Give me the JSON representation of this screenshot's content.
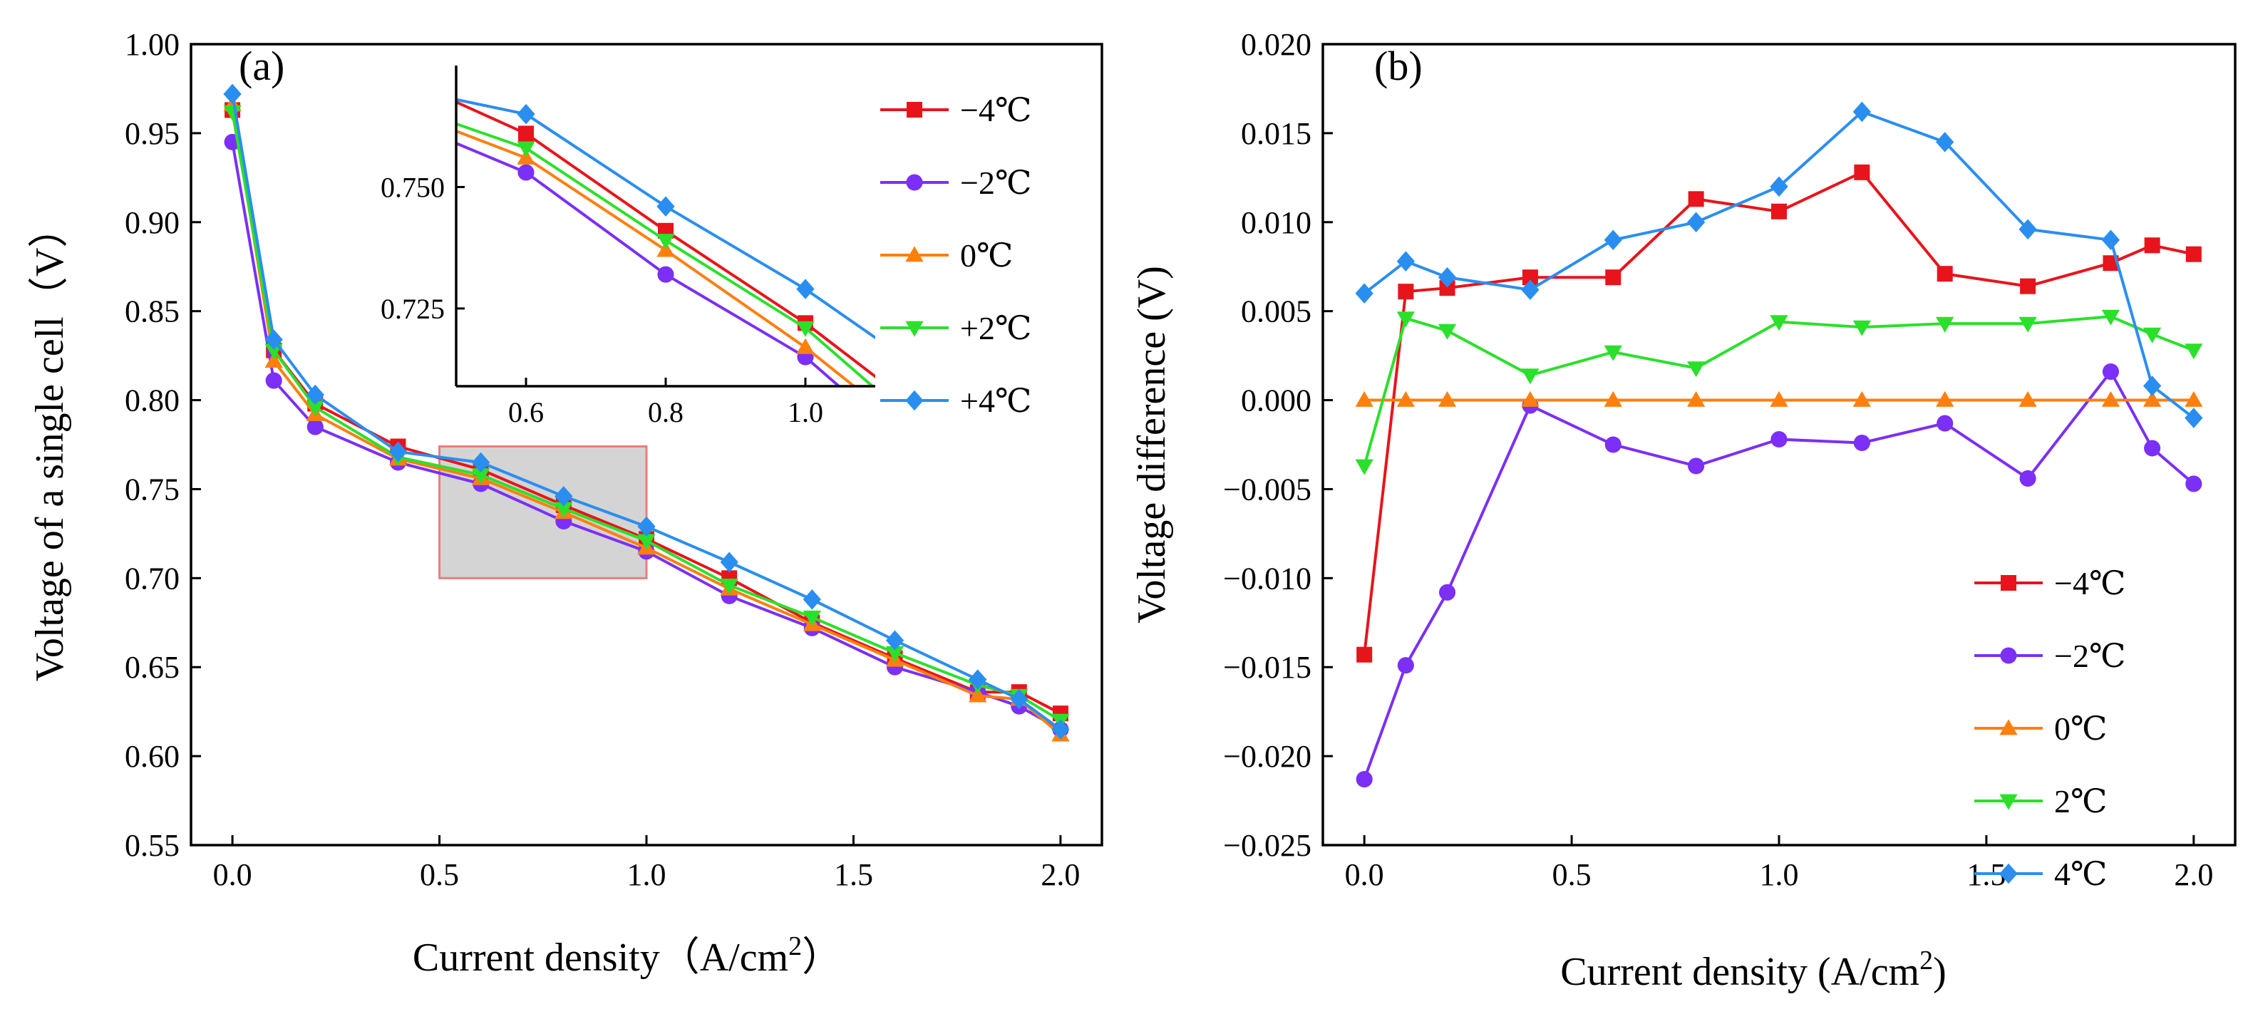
{
  "chart_data": [
    {
      "type": "line",
      "panel_label": "(a)",
      "xlabel": "Current density（A/cm",
      "xlabel_sup": "2",
      "xlabel_close": "）",
      "ylabel": "Voltage of a single cell（V）",
      "xlim": [
        -0.1,
        2.1
      ],
      "ylim": [
        0.55,
        1.0
      ],
      "xticks": [
        "0.0",
        "0.5",
        "1.0",
        "1.5",
        "2.0"
      ],
      "yticks": [
        "0.55",
        "0.60",
        "0.65",
        "0.70",
        "0.75",
        "0.80",
        "0.85",
        "0.90",
        "0.95",
        "1.00"
      ],
      "x": [
        0,
        0.1,
        0.2,
        0.4,
        0.6,
        0.8,
        1.0,
        1.2,
        1.4,
        1.6,
        1.8,
        1.9,
        2.0
      ],
      "series": [
        {
          "name": "−4℃",
          "color": "#e8141b",
          "marker": "square",
          "values": [
            0.963,
            0.828,
            0.798,
            0.774,
            0.761,
            0.741,
            0.722,
            0.7,
            0.675,
            0.655,
            0.636,
            0.636,
            0.624
          ]
        },
        {
          "name": "−2℃",
          "color": "#7b2ff7",
          "marker": "circle",
          "values": [
            0.945,
            0.811,
            0.785,
            0.765,
            0.753,
            0.732,
            0.715,
            0.69,
            0.672,
            0.65,
            0.636,
            0.628,
            0.615
          ]
        },
        {
          "name": "0℃",
          "color": "#ff7f0e",
          "marker": "triangle-up",
          "values": [
            0.966,
            0.822,
            0.792,
            0.767,
            0.756,
            0.737,
            0.717,
            0.694,
            0.674,
            0.654,
            0.634,
            0.632,
            0.612
          ]
        },
        {
          "name": "+2℃",
          "color": "#2be02b",
          "marker": "triangle-down",
          "values": [
            0.962,
            0.828,
            0.796,
            0.768,
            0.758,
            0.739,
            0.721,
            0.696,
            0.678,
            0.658,
            0.64,
            0.634,
            0.62
          ]
        },
        {
          "name": "+4℃",
          "color": "#2a8ef0",
          "marker": "diamond",
          "values": [
            0.972,
            0.834,
            0.803,
            0.771,
            0.765,
            0.746,
            0.729,
            0.709,
            0.688,
            0.665,
            0.643,
            0.632,
            0.615
          ]
        }
      ],
      "zoom_box": {
        "x": [
          0.5,
          1.0
        ],
        "y": [
          0.7,
          0.774
        ]
      },
      "inset": {
        "xlim": [
          0.5,
          1.1
        ],
        "ylim": [
          0.709,
          0.775
        ],
        "xticks": [
          "0.6",
          "0.8",
          "1.0"
        ],
        "yticks": [
          "0.725",
          "0.750"
        ]
      }
    },
    {
      "type": "line",
      "panel_label": "(b)",
      "xlabel": "Current density (A/cm",
      "xlabel_sup": "2",
      "xlabel_close": ")",
      "ylabel": "Voltage difference (V)",
      "xlim": [
        -0.1,
        2.1
      ],
      "ylim": [
        -0.025,
        0.02
      ],
      "xticks": [
        "0.0",
        "0.5",
        "1.0",
        "1.5",
        "2.0"
      ],
      "yticks": [
        "−0.025",
        "−0.020",
        "−0.015",
        "−0.010",
        "−0.005",
        "0.000",
        "0.005",
        "0.010",
        "0.015",
        "0.020"
      ],
      "x": [
        0,
        0.1,
        0.2,
        0.4,
        0.6,
        0.8,
        1.0,
        1.2,
        1.4,
        1.6,
        1.8,
        1.9,
        2.0
      ],
      "series": [
        {
          "name": "−4℃",
          "color": "#e8141b",
          "marker": "square",
          "values": [
            -0.0143,
            0.0061,
            0.0063,
            0.0069,
            0.0069,
            0.0113,
            0.0106,
            0.0128,
            0.0071,
            0.0064,
            0.0077,
            0.0087,
            0.0082
          ]
        },
        {
          "name": "−2℃",
          "color": "#7b2ff7",
          "marker": "circle",
          "values": [
            -0.0213,
            -0.0149,
            -0.0108,
            -0.0003,
            -0.0025,
            -0.0037,
            -0.0022,
            -0.0024,
            -0.0013,
            -0.0044,
            0.0016,
            -0.0027,
            -0.0047
          ]
        },
        {
          "name": "0℃",
          "color": "#ff7f0e",
          "marker": "triangle-up",
          "values": [
            0,
            0,
            0,
            0,
            0,
            0,
            0,
            0,
            0,
            0,
            0,
            0,
            0
          ]
        },
        {
          "name": "2℃",
          "color": "#2be02b",
          "marker": "triangle-down",
          "values": [
            -0.0037,
            0.0046,
            0.0039,
            0.0014,
            0.0027,
            0.0018,
            0.0044,
            0.0041,
            0.0043,
            0.0043,
            0.0047,
            0.0037,
            0.0028
          ]
        },
        {
          "name": "4℃",
          "color": "#2a8ef0",
          "marker": "diamond",
          "values": [
            0.006,
            0.0078,
            0.0069,
            0.0062,
            0.009,
            0.01,
            0.012,
            0.0162,
            0.0145,
            0.0096,
            0.009,
            0.0008,
            -0.001
          ]
        }
      ]
    }
  ]
}
